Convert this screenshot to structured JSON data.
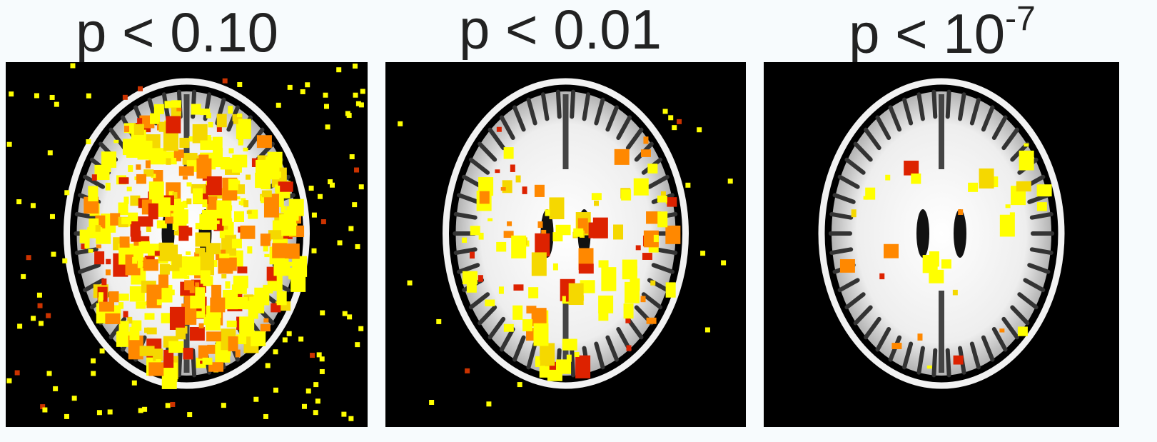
{
  "panels": [
    {
      "title": "p < 0.10"
    },
    {
      "title": "p < 0.01"
    },
    {
      "title": "p < 10",
      "superscript": "-7"
    }
  ]
}
